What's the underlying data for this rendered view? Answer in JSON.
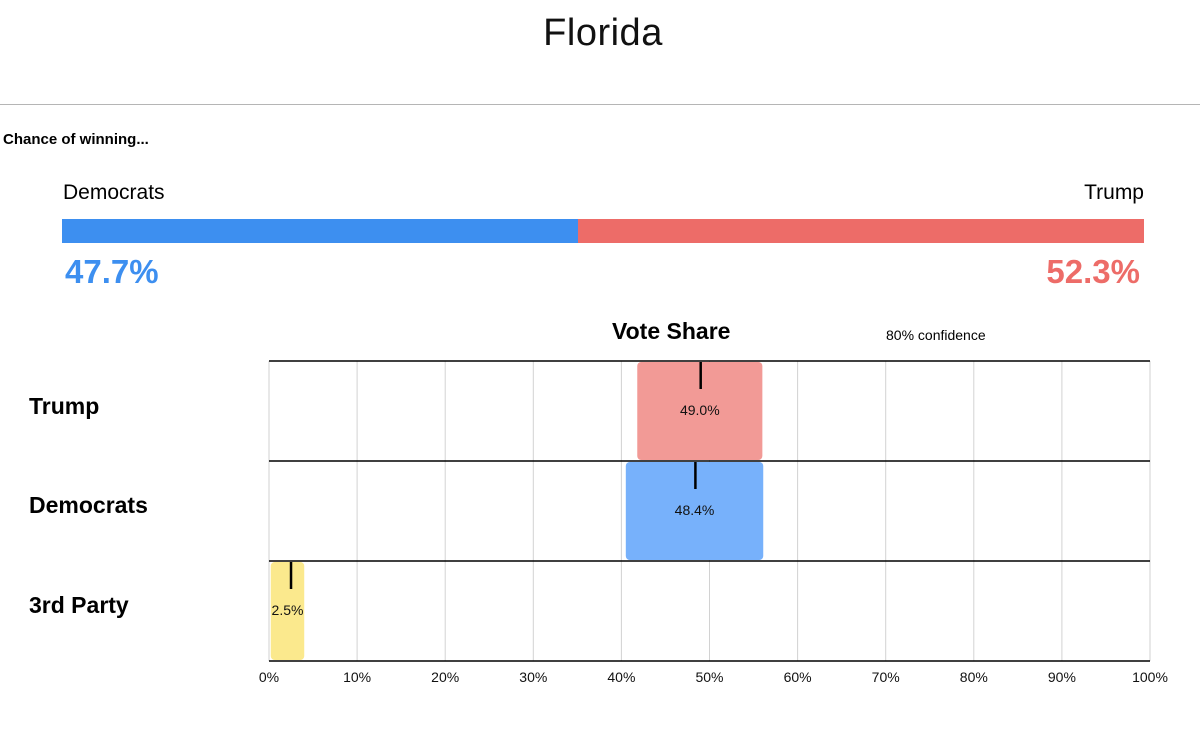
{
  "header": {
    "title": "Florida"
  },
  "chance": {
    "label": "Chance of winning...",
    "left_name": "Democrats",
    "right_name": "Trump",
    "left_value": 47.7,
    "right_value": 52.3,
    "left_display": "47.7%",
    "right_display": "52.3%",
    "left_color": "#3d8ff0",
    "right_color": "#ed6c68"
  },
  "chart_data": {
    "type": "bar",
    "title": "Vote Share",
    "annotation": "80% confidence",
    "xlim": [
      0,
      100
    ],
    "x_ticks": [
      0,
      10,
      20,
      30,
      40,
      50,
      60,
      70,
      80,
      90,
      100
    ],
    "x_tick_labels": [
      "0%",
      "10%",
      "20%",
      "30%",
      "40%",
      "50%",
      "60%",
      "70%",
      "80%",
      "90%",
      "100%"
    ],
    "grid": true,
    "series": [
      {
        "name": "Trump",
        "value": 49.0,
        "label": "49.0%",
        "low": 41.8,
        "high": 56.0,
        "color": "#f29a96"
      },
      {
        "name": "Democrats",
        "value": 48.4,
        "label": "48.4%",
        "low": 40.5,
        "high": 56.1,
        "color": "#77b1fb"
      },
      {
        "name": "3rd Party",
        "value": 2.5,
        "label": "2.5%",
        "low": 0.2,
        "high": 4.0,
        "color": "#fbe98d"
      }
    ]
  }
}
